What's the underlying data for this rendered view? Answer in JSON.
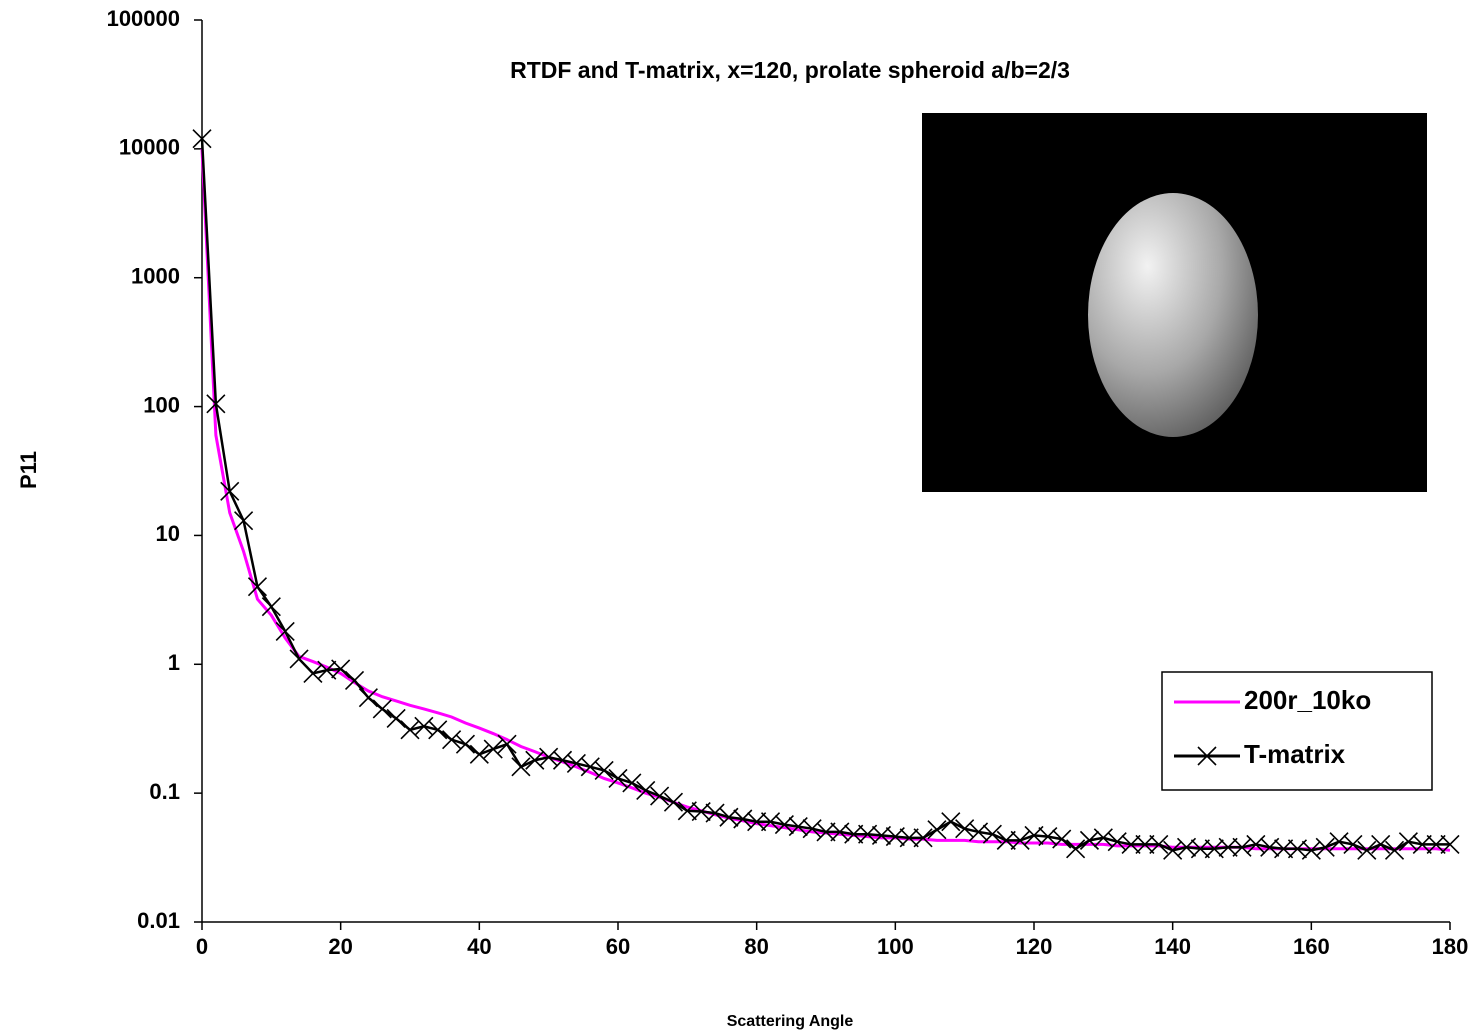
{
  "chart_data": {
    "type": "line",
    "title": "RTDF and T-matrix, x=120, prolate spheroid a/b=2/3",
    "x_label": "Scattering Angle",
    "y_label": "P11",
    "y_scale": "log",
    "grid": false,
    "legend": "right",
    "xlim": [
      0,
      180
    ],
    "xticks": [
      0,
      20,
      40,
      60,
      80,
      100,
      120,
      140,
      160,
      180
    ],
    "ylim": [
      0.01,
      100000
    ],
    "yticks": [
      0.01,
      0.1,
      1,
      10,
      100,
      1000,
      10000,
      100000
    ],
    "x": [
      0,
      2,
      4,
      6,
      8,
      10,
      12,
      14,
      16,
      18,
      20,
      22,
      24,
      26,
      28,
      30,
      32,
      34,
      36,
      38,
      40,
      42,
      44,
      46,
      48,
      50,
      52,
      54,
      56,
      58,
      60,
      62,
      64,
      66,
      68,
      70,
      72,
      74,
      76,
      78,
      80,
      82,
      84,
      86,
      88,
      90,
      92,
      94,
      96,
      98,
      100,
      102,
      104,
      106,
      108,
      110,
      112,
      114,
      116,
      118,
      120,
      122,
      124,
      126,
      128,
      130,
      132,
      134,
      136,
      138,
      140,
      142,
      144,
      146,
      148,
      150,
      152,
      154,
      156,
      158,
      160,
      162,
      164,
      166,
      168,
      170,
      172,
      174,
      176,
      178,
      180
    ],
    "series": [
      {
        "name": "200r_10ko",
        "color": "#ff00ff",
        "marker": "none",
        "values": [
          10000,
          60,
          15,
          7.5,
          3.2,
          2.4,
          1.6,
          1.15,
          1.05,
          0.95,
          0.85,
          0.72,
          0.62,
          0.56,
          0.52,
          0.48,
          0.45,
          0.42,
          0.39,
          0.35,
          0.32,
          0.29,
          0.26,
          0.23,
          0.21,
          0.19,
          0.175,
          0.16,
          0.145,
          0.13,
          0.12,
          0.11,
          0.1,
          0.093,
          0.085,
          0.078,
          0.073,
          0.068,
          0.064,
          0.061,
          0.058,
          0.056,
          0.054,
          0.052,
          0.05,
          0.049,
          0.048,
          0.047,
          0.046,
          0.045,
          0.045,
          0.044,
          0.044,
          0.043,
          0.043,
          0.043,
          0.042,
          0.042,
          0.042,
          0.041,
          0.041,
          0.041,
          0.04,
          0.04,
          0.04,
          0.04,
          0.039,
          0.039,
          0.039,
          0.039,
          0.038,
          0.038,
          0.038,
          0.038,
          0.038,
          0.038,
          0.037,
          0.037,
          0.037,
          0.037,
          0.037,
          0.037,
          0.037,
          0.037,
          0.037,
          0.037,
          0.037,
          0.037,
          0.037,
          0.037,
          0.036
        ]
      },
      {
        "name": "T-matrix",
        "color": "#000000",
        "marker": "x",
        "values": [
          12000,
          105,
          22,
          13,
          4,
          2.8,
          1.8,
          1.1,
          0.85,
          0.9,
          0.92,
          0.75,
          0.55,
          0.45,
          0.38,
          0.31,
          0.33,
          0.31,
          0.26,
          0.24,
          0.2,
          0.22,
          0.24,
          0.16,
          0.18,
          0.19,
          0.18,
          0.17,
          0.16,
          0.15,
          0.13,
          0.12,
          0.105,
          0.095,
          0.085,
          0.073,
          0.072,
          0.07,
          0.065,
          0.063,
          0.06,
          0.06,
          0.057,
          0.055,
          0.053,
          0.05,
          0.05,
          0.048,
          0.048,
          0.047,
          0.046,
          0.045,
          0.045,
          0.052,
          0.06,
          0.053,
          0.05,
          0.048,
          0.043,
          0.043,
          0.047,
          0.046,
          0.044,
          0.037,
          0.043,
          0.045,
          0.042,
          0.04,
          0.04,
          0.04,
          0.036,
          0.038,
          0.037,
          0.037,
          0.038,
          0.038,
          0.04,
          0.038,
          0.037,
          0.037,
          0.036,
          0.038,
          0.042,
          0.04,
          0.036,
          0.04,
          0.036,
          0.042,
          0.04,
          0.04,
          0.04
        ]
      }
    ]
  }
}
